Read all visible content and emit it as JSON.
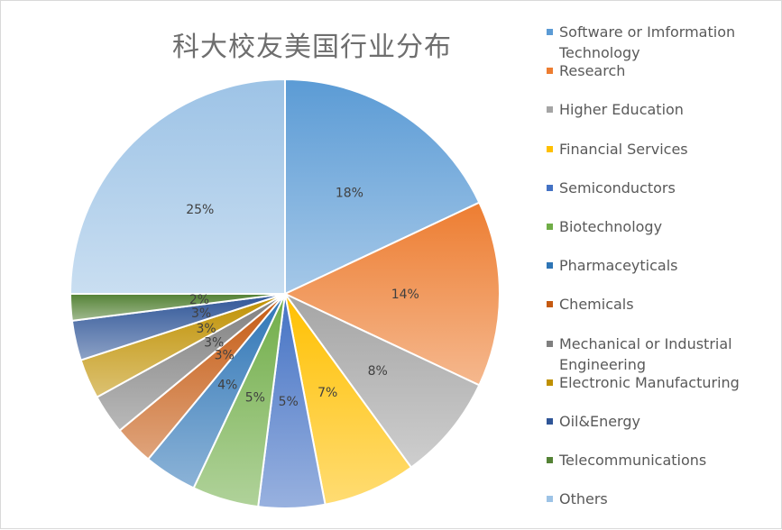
{
  "chart_data": {
    "type": "pie",
    "title": "科大校友美国行业分布",
    "legend_position": "right",
    "slices": [
      {
        "name": "Software or Imformation Technology",
        "value": 18,
        "label": "18%",
        "color": "#5b9bd5"
      },
      {
        "name": "Research",
        "value": 14,
        "label": "14%",
        "color": "#ed7d31"
      },
      {
        "name": "Higher Education",
        "value": 8,
        "label": "8%",
        "color": "#a5a5a5"
      },
      {
        "name": "Financial Services",
        "value": 7,
        "label": "7%",
        "color": "#ffc000"
      },
      {
        "name": "Semiconductors",
        "value": 5,
        "label": "5%",
        "color": "#4472c4"
      },
      {
        "name": "Biotechnology",
        "value": 5,
        "label": "5%",
        "color": "#70ad47"
      },
      {
        "name": "Pharmaceyticals",
        "value": 4,
        "label": "4%",
        "color": "#2e75b6"
      },
      {
        "name": "Chemicals",
        "value": 3,
        "label": "3%",
        "color": "#c55a11"
      },
      {
        "name": "Mechanical or Industrial Engineering",
        "value": 3,
        "label": "3%",
        "color": "#7f7f7f"
      },
      {
        "name": "Electronic Manufacturing",
        "value": 3,
        "label": "3%",
        "color": "#bf9000"
      },
      {
        "name": "Oil&Energy",
        "value": 3,
        "label": "3%",
        "color": "#2f5597"
      },
      {
        "name": "Telecommunications",
        "value": 2,
        "label": "2%",
        "color": "#548235"
      },
      {
        "name": "Others",
        "value": 25,
        "label": "25%",
        "color": "#9dc3e6"
      }
    ]
  }
}
